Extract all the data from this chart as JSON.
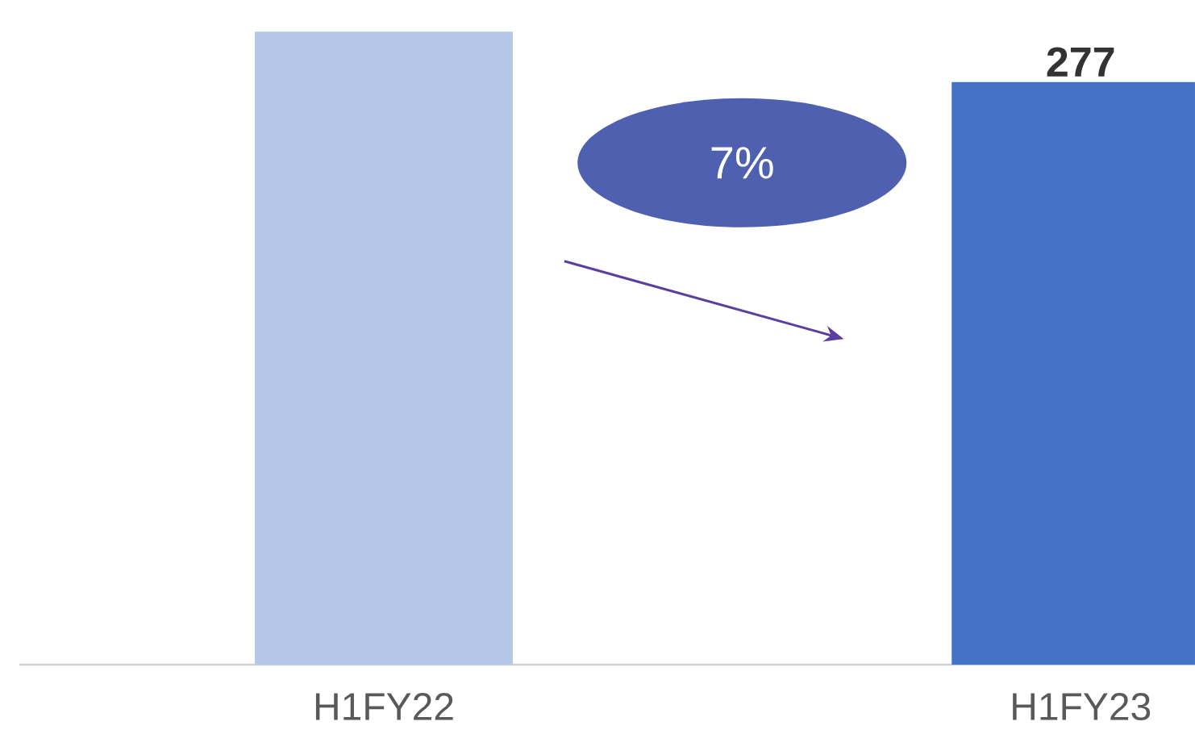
{
  "chart_data": {
    "type": "bar",
    "categories": [
      "H1FY22",
      "H1FY23"
    ],
    "values": [
      301,
      277
    ],
    "colors": [
      "#b4c7e7",
      "#4472c4"
    ],
    "value_labels": [
      null,
      "277"
    ],
    "annotations": [
      "7%"
    ],
    "tick_labels": "x"
  }
}
